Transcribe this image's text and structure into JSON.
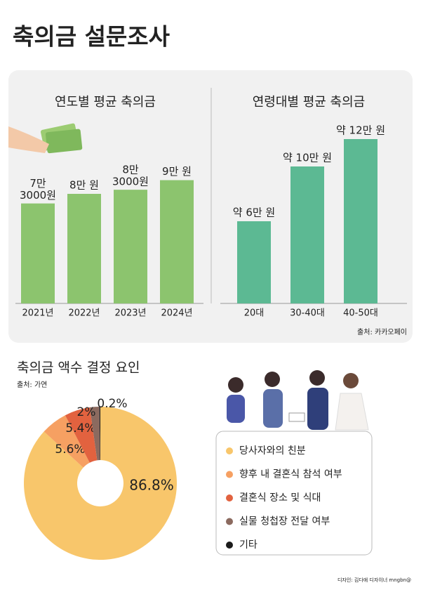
{
  "title": "축의금 설문조사",
  "chart_data": [
    {
      "type": "bar",
      "title": "연도별 평균 축의금",
      "categories": [
        "2021년",
        "2022년",
        "2023년",
        "2024년"
      ],
      "values": [
        73000,
        80000,
        83000,
        90000
      ],
      "value_labels": [
        "7만\n3000원",
        "8만 원",
        "8만\n3000원",
        "9만 원"
      ],
      "color": "#8cc46e"
    },
    {
      "type": "bar",
      "title": "연령대별 평균 축의금",
      "categories": [
        "20대",
        "30-40대",
        "40-50대"
      ],
      "values": [
        60000,
        100000,
        120000
      ],
      "value_labels": [
        "약 6만 원",
        "약 10만 원",
        "약 12만 원"
      ],
      "color": "#5cb993",
      "source": "출처: 카카오페이"
    },
    {
      "type": "pie",
      "title": "축의금 액수 결정 요인",
      "source": "출처: 가연",
      "donut": true,
      "categories": [
        "당사자와의 친분",
        "향후 내 결혼식 참석 여부",
        "결혼식 장소 및 식대",
        "실물 청첩장 전달 여부",
        "기타"
      ],
      "values": [
        86.8,
        5.6,
        5.4,
        2,
        0.2
      ],
      "value_labels": [
        "86.8%",
        "5.6%",
        "5.4%",
        "2%",
        "0.2%"
      ],
      "colors": [
        "#f8c66b",
        "#f6a062",
        "#e2623f",
        "#8b6a5f",
        "#1b1b1b"
      ]
    }
  ],
  "credit": "디자인: 김다애 디자이너 mngbn@"
}
